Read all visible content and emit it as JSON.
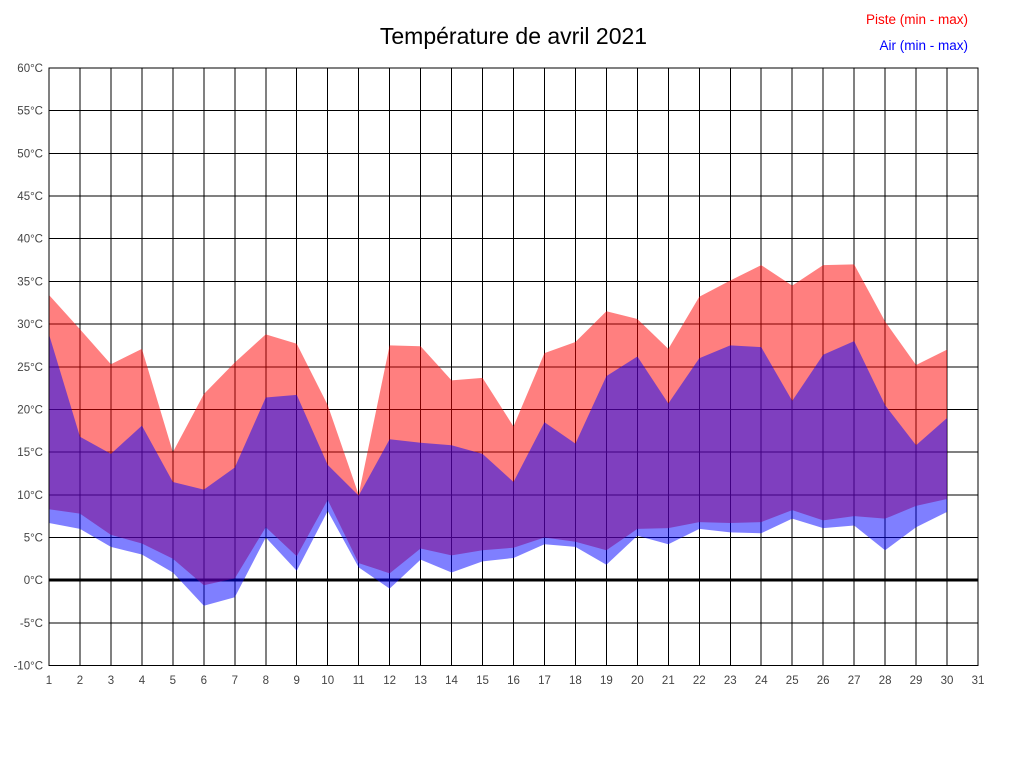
{
  "chart_data": {
    "type": "area",
    "title": "Température de avril 2021",
    "xlabel": "",
    "ylabel": "",
    "xlim": [
      1,
      31
    ],
    "ylim": [
      -10,
      60
    ],
    "x_ticks": [
      1,
      2,
      3,
      4,
      5,
      6,
      7,
      8,
      9,
      10,
      11,
      12,
      13,
      14,
      15,
      16,
      17,
      18,
      19,
      20,
      21,
      22,
      23,
      24,
      25,
      26,
      27,
      28,
      29,
      30,
      31
    ],
    "y_ticks": [
      60,
      55,
      50,
      45,
      40,
      35,
      30,
      25,
      20,
      15,
      10,
      5,
      0,
      -5,
      -10
    ],
    "y_tick_suffix": "°C",
    "grid": true,
    "zero_line": true,
    "legend_position": "top-right",
    "x": [
      1,
      2,
      3,
      4,
      5,
      6,
      7,
      8,
      9,
      10,
      11,
      12,
      13,
      14,
      15,
      16,
      17,
      18,
      19,
      20,
      21,
      22,
      23,
      24,
      25,
      26,
      27,
      28,
      29,
      30
    ],
    "series": [
      {
        "name": "Piste (min - max)",
        "color": "#ff0000",
        "fill_opacity": 0.5,
        "max": [
          33.4,
          29.4,
          25.3,
          27.1,
          15.0,
          21.8,
          25.5,
          28.8,
          27.7,
          20.5,
          10.0,
          27.5,
          27.4,
          23.4,
          23.7,
          18.0,
          26.6,
          27.9,
          31.5,
          30.6,
          27.1,
          33.2,
          35.1,
          36.9,
          34.5,
          36.9,
          37.0,
          30.3,
          25.2,
          27.0
        ],
        "min": [
          8.3,
          7.8,
          5.3,
          4.3,
          2.5,
          -0.6,
          0.2,
          6.2,
          2.8,
          9.4,
          2.0,
          0.8,
          3.7,
          2.9,
          3.5,
          3.8,
          5.0,
          4.5,
          3.5,
          6.0,
          6.1,
          6.8,
          6.7,
          6.8,
          8.2,
          7.0,
          7.5,
          7.2,
          8.7,
          9.5
        ]
      },
      {
        "name": "Air (min - max)",
        "color": "#0000ff",
        "fill_opacity": 0.5,
        "max": [
          28.8,
          16.8,
          14.8,
          18.1,
          11.5,
          10.6,
          13.2,
          21.4,
          21.7,
          13.5,
          9.9,
          16.5,
          16.1,
          15.8,
          14.8,
          11.5,
          18.5,
          16.0,
          23.9,
          26.2,
          20.7,
          26.0,
          27.5,
          27.3,
          21.0,
          26.4,
          28.0,
          20.5,
          15.8,
          19.0
        ],
        "min": [
          6.7,
          6.0,
          3.9,
          3.0,
          0.9,
          -3.0,
          -2.0,
          5.0,
          1.1,
          8.1,
          1.5,
          -1.0,
          2.4,
          0.9,
          2.2,
          2.6,
          4.2,
          3.9,
          1.8,
          5.2,
          4.2,
          6.0,
          5.6,
          5.5,
          7.2,
          6.1,
          6.4,
          3.5,
          6.2,
          8.0
        ]
      }
    ]
  },
  "colors": {
    "background": "#ffffff",
    "grid": "#000000",
    "border": "#000000",
    "zero_line": "#000000",
    "axis_text": "#444444",
    "title_text": "#000000"
  }
}
